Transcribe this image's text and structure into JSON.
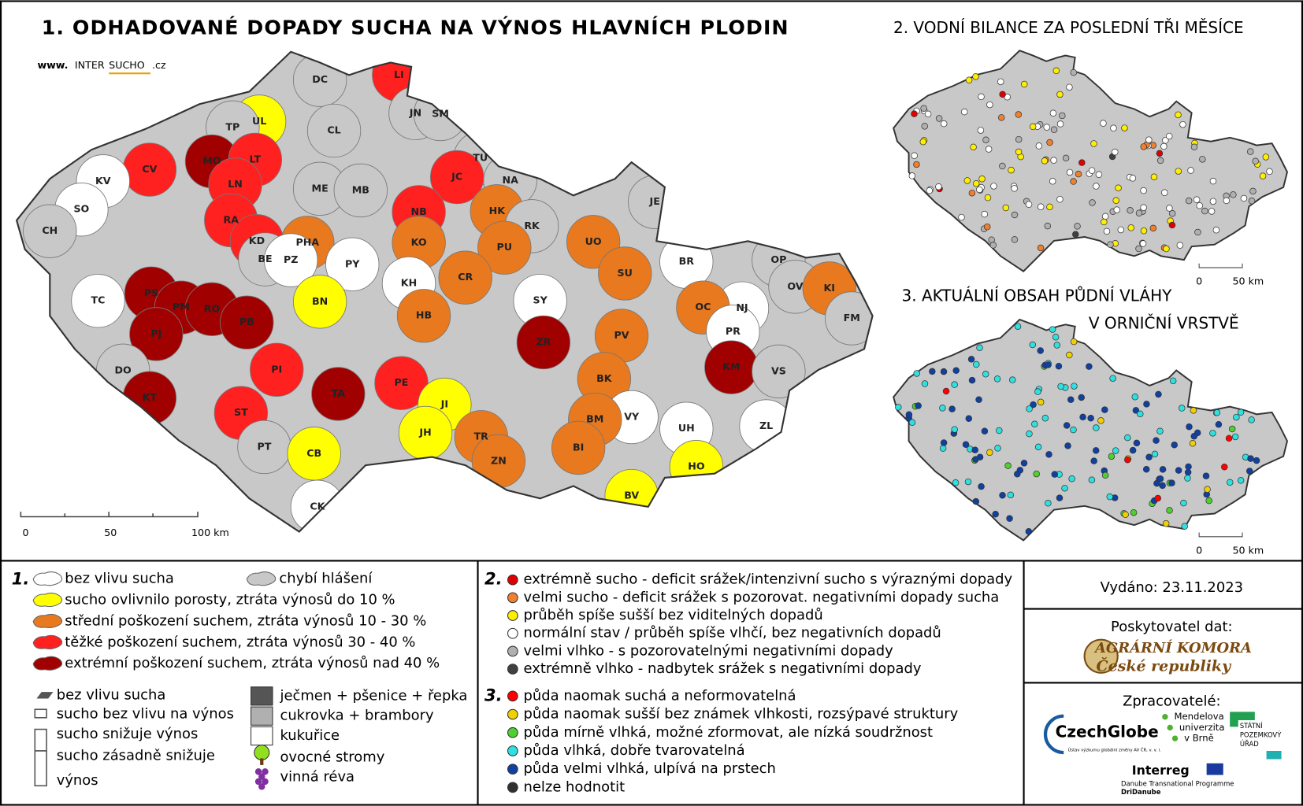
{
  "title": "1. ODHADOVANÉ DOPADY SUCHA NA VÝNOS HLAVNÍCH PLODIN",
  "logo": {
    "www": "www.",
    "inter": "INTER",
    "sucho": "SUCHO",
    "cz": ".cz"
  },
  "map1": {
    "districts": [
      {
        "code": "DC",
        "color": "#c8c8c8"
      },
      {
        "code": "LI",
        "color": "#ff2020"
      },
      {
        "code": "UL",
        "color": "#ffff00"
      },
      {
        "code": "TP",
        "color": "#c8c8c8"
      },
      {
        "code": "CL",
        "color": "#c8c8c8"
      },
      {
        "code": "JN",
        "color": "#c8c8c8"
      },
      {
        "code": "SM",
        "color": "#c8c8c8"
      },
      {
        "code": "MO",
        "color": "#a00000"
      },
      {
        "code": "CV",
        "color": "#ff2020"
      },
      {
        "code": "LT",
        "color": "#ff2020"
      },
      {
        "code": "TU",
        "color": "#c8c8c8"
      },
      {
        "code": "KV",
        "color": "#ffffff"
      },
      {
        "code": "JC",
        "color": "#ff2020"
      },
      {
        "code": "LN",
        "color": "#ff2020"
      },
      {
        "code": "ME",
        "color": "#c8c8c8"
      },
      {
        "code": "MB",
        "color": "#c8c8c8"
      },
      {
        "code": "NA",
        "color": "#c8c8c8"
      },
      {
        "code": "SO",
        "color": "#ffffff"
      },
      {
        "code": "HK",
        "color": "#e8791e"
      },
      {
        "code": "JE",
        "color": "#c8c8c8"
      },
      {
        "code": "RA",
        "color": "#ff2020"
      },
      {
        "code": "NB",
        "color": "#ff2020"
      },
      {
        "code": "CH",
        "color": "#c8c8c8"
      },
      {
        "code": "RK",
        "color": "#c8c8c8"
      },
      {
        "code": "PHA",
        "color": "#e8791e"
      },
      {
        "code": "KD",
        "color": "#ff2020"
      },
      {
        "code": "KO",
        "color": "#e8791e"
      },
      {
        "code": "PU",
        "color": "#e8791e"
      },
      {
        "code": "UO",
        "color": "#e8791e"
      },
      {
        "code": "BE",
        "color": "#c8c8c8"
      },
      {
        "code": "PZ",
        "color": "#ffffff"
      },
      {
        "code": "PY",
        "color": "#ffffff"
      },
      {
        "code": "BR",
        "color": "#ffffff"
      },
      {
        "code": "OP",
        "color": "#c8c8c8"
      },
      {
        "code": "SU",
        "color": "#e8791e"
      },
      {
        "code": "CR",
        "color": "#e8791e"
      },
      {
        "code": "KH",
        "color": "#ffffff"
      },
      {
        "code": "OV",
        "color": "#c8c8c8"
      },
      {
        "code": "KI",
        "color": "#e8791e"
      },
      {
        "code": "TC",
        "color": "#ffffff"
      },
      {
        "code": "PS",
        "color": "#a00000"
      },
      {
        "code": "SY",
        "color": "#ffffff"
      },
      {
        "code": "PM",
        "color": "#a00000"
      },
      {
        "code": "RO",
        "color": "#a00000"
      },
      {
        "code": "BN",
        "color": "#ffff00"
      },
      {
        "code": "PB",
        "color": "#a00000"
      },
      {
        "code": "NJ",
        "color": "#ffffff"
      },
      {
        "code": "OC",
        "color": "#e8791e"
      },
      {
        "code": "HB",
        "color": "#e8791e"
      },
      {
        "code": "FM",
        "color": "#c8c8c8"
      },
      {
        "code": "PJ",
        "color": "#a00000"
      },
      {
        "code": "PR",
        "color": "#ffffff"
      },
      {
        "code": "PV",
        "color": "#e8791e"
      },
      {
        "code": "ZR",
        "color": "#a00000"
      },
      {
        "code": "KM",
        "color": "#a00000"
      },
      {
        "code": "DO",
        "color": "#c8c8c8"
      },
      {
        "code": "VS",
        "color": "#c8c8c8"
      },
      {
        "code": "BK",
        "color": "#e8791e"
      },
      {
        "code": "PI",
        "color": "#ff2020"
      },
      {
        "code": "TA",
        "color": "#a00000"
      },
      {
        "code": "PE",
        "color": "#ff2020"
      },
      {
        "code": "KT",
        "color": "#a00000"
      },
      {
        "code": "ST",
        "color": "#ff2020"
      },
      {
        "code": "JI",
        "color": "#ffff00"
      },
      {
        "code": "VY",
        "color": "#ffffff"
      },
      {
        "code": "BM",
        "color": "#e8791e"
      },
      {
        "code": "UH",
        "color": "#ffffff"
      },
      {
        "code": "ZL",
        "color": "#ffffff"
      },
      {
        "code": "JH",
        "color": "#ffff00"
      },
      {
        "code": "TR",
        "color": "#e8791e"
      },
      {
        "code": "PT",
        "color": "#c8c8c8"
      },
      {
        "code": "CB",
        "color": "#ffff00"
      },
      {
        "code": "BI",
        "color": "#e8791e"
      },
      {
        "code": "ZN",
        "color": "#e8791e"
      },
      {
        "code": "HO",
        "color": "#ffff00"
      },
      {
        "code": "BV",
        "color": "#ffff00"
      },
      {
        "code": "CK",
        "color": "#ffffff"
      }
    ],
    "scale": [
      "0",
      "50",
      "100 km"
    ]
  },
  "map2": {
    "title": "2. VODNÍ BILANCE ZA POSLEDNÍ TŘI MĚSÍCE",
    "scale": [
      "0",
      "50 km"
    ]
  },
  "map3": {
    "title_lines": [
      "3. AKTUÁLNÍ OBSAH PŮDNÍ VLÁHY",
      "V ORNIČNÍ VRSTVĚ"
    ],
    "scale": [
      "0",
      "50 km"
    ]
  },
  "legend1": {
    "number": "1.",
    "items": [
      {
        "label": "bez vlivu sucha",
        "color": "#ffffff"
      },
      {
        "label": "sucho ovlivnilo porosty, ztráta výnosů do 10 %",
        "color": "#ffff00"
      },
      {
        "label": "střední poškození suchem, ztráta výnosů 10 - 30 %",
        "color": "#e8791e"
      },
      {
        "label": "těžké poškození suchem, ztráta výnosů 30 - 40 %",
        "color": "#ff2020"
      },
      {
        "label": "extrémní poškození suchem, ztráta výnosů nad 40 %",
        "color": "#a00000"
      }
    ],
    "missing": {
      "label": "chybí hlášení",
      "color": "#c8c8c8"
    },
    "bars": [
      {
        "lines": [
          "bez vlivu sucha"
        ]
      },
      {
        "lines": [
          "sucho bez vlivu na výnos"
        ]
      },
      {
        "lines": [
          "sucho snižuje výnos"
        ]
      },
      {
        "lines": [
          "sucho zásadně snižuje",
          "výnos"
        ]
      }
    ],
    "crops": [
      {
        "label": "ječmen + pšenice + řepka",
        "color": "#555555"
      },
      {
        "label": "cukrovka + brambory",
        "color": "#b0b0b0"
      },
      {
        "label": "kukuřice",
        "color": "#ffffff"
      }
    ],
    "icons": [
      "ovocné stromy",
      "vinná réva"
    ]
  },
  "legend2": {
    "number": "2.",
    "items": [
      {
        "label": "extrémně sucho - deficit srážek/intenzivní sucho s výraznými dopady",
        "color": "#e00000"
      },
      {
        "label": "velmi sucho - deficit srážek s pozorovat. negativními dopady sucha",
        "color": "#f08030"
      },
      {
        "label": "průběh spíše sušší bez viditelných dopadů",
        "color": "#ffee00"
      },
      {
        "label": "normální stav / průběh spíše vlhčí, bez negativních dopadů",
        "color": "#ffffff"
      },
      {
        "label": "velmi vlhko - s pozorovatelnými negativními dopady",
        "color": "#b0b0b0"
      },
      {
        "label": "extrémně vlhko - nadbytek srážek s negativními dopady",
        "color": "#404040"
      }
    ]
  },
  "legend3": {
    "number": "3.",
    "items": [
      {
        "label": "půda naomak suchá a neformovatelná",
        "color": "#ff0000"
      },
      {
        "label": "půda naomak sušší bez známek vlhkosti, rozsýpavé struktury",
        "color": "#f0d000"
      },
      {
        "label": "půda mírně vlhká, možné zformovat, ale nízká soudržnost",
        "color": "#50d030"
      },
      {
        "label": "půda vlhká, dobře tvarovatelná",
        "color": "#30e0e0"
      },
      {
        "label": "půda velmi vlhká, ulpívá na prstech",
        "color": "#1040a0"
      },
      {
        "label": "nelze hodnotit",
        "color": "#303030"
      }
    ]
  },
  "issued": "Vydáno: 23.11.2023",
  "provider": {
    "heading": "Poskytovatel dat:",
    "name_lines": [
      "AGRÁRNÍ KOMORA",
      "České republiky"
    ]
  },
  "processors": {
    "heading": "Zpracovatelé:",
    "czechglobe": "CzechGlobe",
    "czechglobe_sub": "Ústav výzkumu globální změny AV ČR, v. v. i.",
    "mendel": [
      "Mendelova",
      "univerzita",
      "v Brně"
    ],
    "spu": [
      "STÁTNÍ",
      "POZEMKOVÝ",
      "ÚŘAD"
    ],
    "interreg": "Interreg",
    "programme": "Danube Transnational Programme",
    "project": "DriDanube"
  }
}
